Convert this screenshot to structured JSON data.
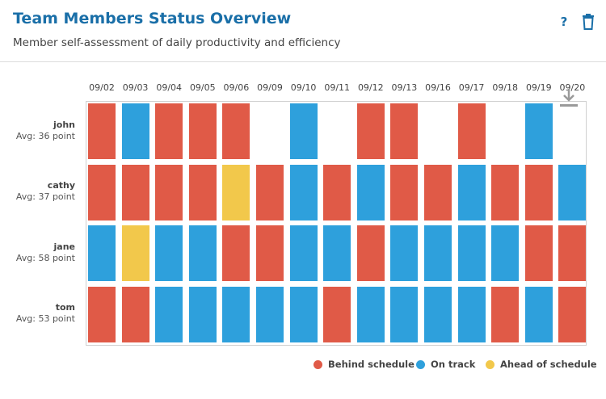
{
  "header": {
    "title": "Team Members Status Overview",
    "subtitle": "Member self-assessment of daily productivity and efficiency",
    "help_label": "?",
    "help_icon": "question-mark-icon",
    "delete_icon": "trash-icon",
    "download_icon": "download-icon"
  },
  "colors": {
    "title": "#1a6fa8",
    "Behind schedule": "#e05a47",
    "On track": "#2ea0dc",
    "Ahead of schedule": "#f2c84b"
  },
  "chart_data": {
    "type": "heatmap",
    "dates": [
      "09/02",
      "09/03",
      "09/04",
      "09/05",
      "09/06",
      "09/09",
      "09/10",
      "09/11",
      "09/12",
      "09/13",
      "09/16",
      "09/17",
      "09/18",
      "09/19",
      "09/20"
    ],
    "members": [
      {
        "name": "john",
        "avg": "Avg: 36 point",
        "status": [
          "Behind schedule",
          "On track",
          "Behind schedule",
          "Behind schedule",
          "Behind schedule",
          null,
          "On track",
          null,
          "Behind schedule",
          "Behind schedule",
          null,
          "Behind schedule",
          null,
          "On track",
          null
        ]
      },
      {
        "name": "cathy",
        "avg": "Avg: 37 point",
        "status": [
          "Behind schedule",
          "Behind schedule",
          "Behind schedule",
          "Behind schedule",
          "Ahead of schedule",
          "Behind schedule",
          "On track",
          "Behind schedule",
          "On track",
          "Behind schedule",
          "Behind schedule",
          "On track",
          "Behind schedule",
          "Behind schedule",
          "On track"
        ]
      },
      {
        "name": "jane",
        "avg": "Avg: 58 point",
        "status": [
          "On track",
          "Ahead of schedule",
          "On track",
          "On track",
          "Behind schedule",
          "Behind schedule",
          "On track",
          "On track",
          "Behind schedule",
          "On track",
          "On track",
          "On track",
          "On track",
          "Behind schedule",
          "Behind schedule"
        ]
      },
      {
        "name": "tom",
        "avg": "Avg: 53 point",
        "status": [
          "Behind schedule",
          "Behind schedule",
          "On track",
          "On track",
          "On track",
          "On track",
          "On track",
          "Behind schedule",
          "On track",
          "On track",
          "On track",
          "On track",
          "Behind schedule",
          "On track",
          "Behind schedule"
        ]
      }
    ],
    "legend": [
      "Behind schedule",
      "On track",
      "Ahead of schedule"
    ],
    "legend_position": "bottom-right"
  }
}
